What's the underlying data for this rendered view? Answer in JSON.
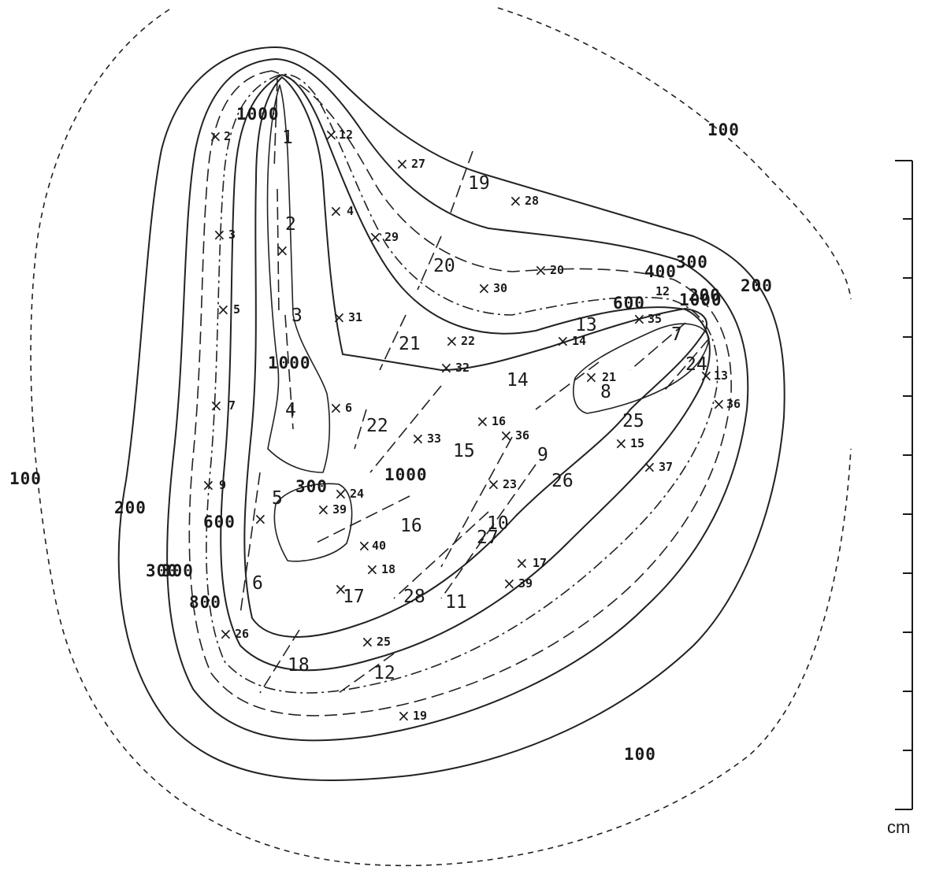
{
  "isodose_labels": [
    "1000",
    "1000",
    "100",
    "300",
    "400",
    "600",
    "12",
    "200",
    "1000",
    "1000",
    "1000",
    "200",
    "100",
    "200",
    "600",
    "300",
    "300",
    "300",
    "600",
    "800",
    "100"
  ],
  "source_labels": [
    "1",
    "2",
    "3",
    "4",
    "5",
    "6",
    "7",
    "8",
    "9",
    "10",
    "11",
    "12",
    "13",
    "14",
    "15",
    "16",
    "17",
    "18",
    "19",
    "20",
    "21",
    "22",
    "24",
    "25",
    "26",
    "27",
    "28"
  ],
  "point_labels": [
    "2",
    "12",
    "27",
    "28",
    "4",
    "3",
    "29",
    "20",
    "30",
    "5",
    "31",
    "22",
    "32",
    "35",
    "14",
    "21",
    "13",
    "36",
    "7",
    "6",
    "16",
    "33",
    "36",
    "15",
    "9",
    "24",
    "23",
    "39",
    "37",
    "40",
    "18",
    "17",
    "39",
    "25",
    "26",
    "19"
  ],
  "scale": {
    "unit": "cm",
    "tick_count": 12
  }
}
